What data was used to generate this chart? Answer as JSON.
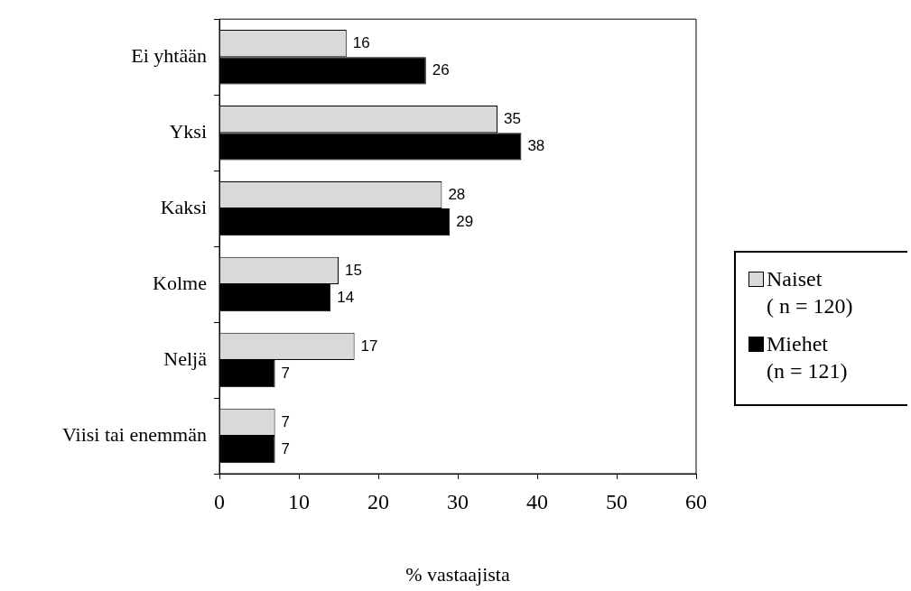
{
  "chart_data": {
    "type": "bar",
    "orientation": "horizontal",
    "xlabel": "% vastaajista",
    "categories": [
      "Ei yhtään",
      "Yksi",
      "Kaksi",
      "Kolme",
      "Neljä",
      "Viisi tai enemmän"
    ],
    "series": [
      {
        "name": "Naiset\n( n = 120)",
        "color": "#d9d9d9",
        "values": [
          16,
          35,
          28,
          15,
          17,
          7
        ]
      },
      {
        "name": "Miehet\n(n = 121)",
        "color": "#000000",
        "values": [
          26,
          38,
          29,
          14,
          7,
          7
        ]
      }
    ],
    "xlim": [
      0,
      60
    ],
    "xticks": [
      0,
      10,
      20,
      30,
      40,
      50,
      60
    ],
    "grid": false,
    "legend": "right",
    "data_labels": true
  }
}
